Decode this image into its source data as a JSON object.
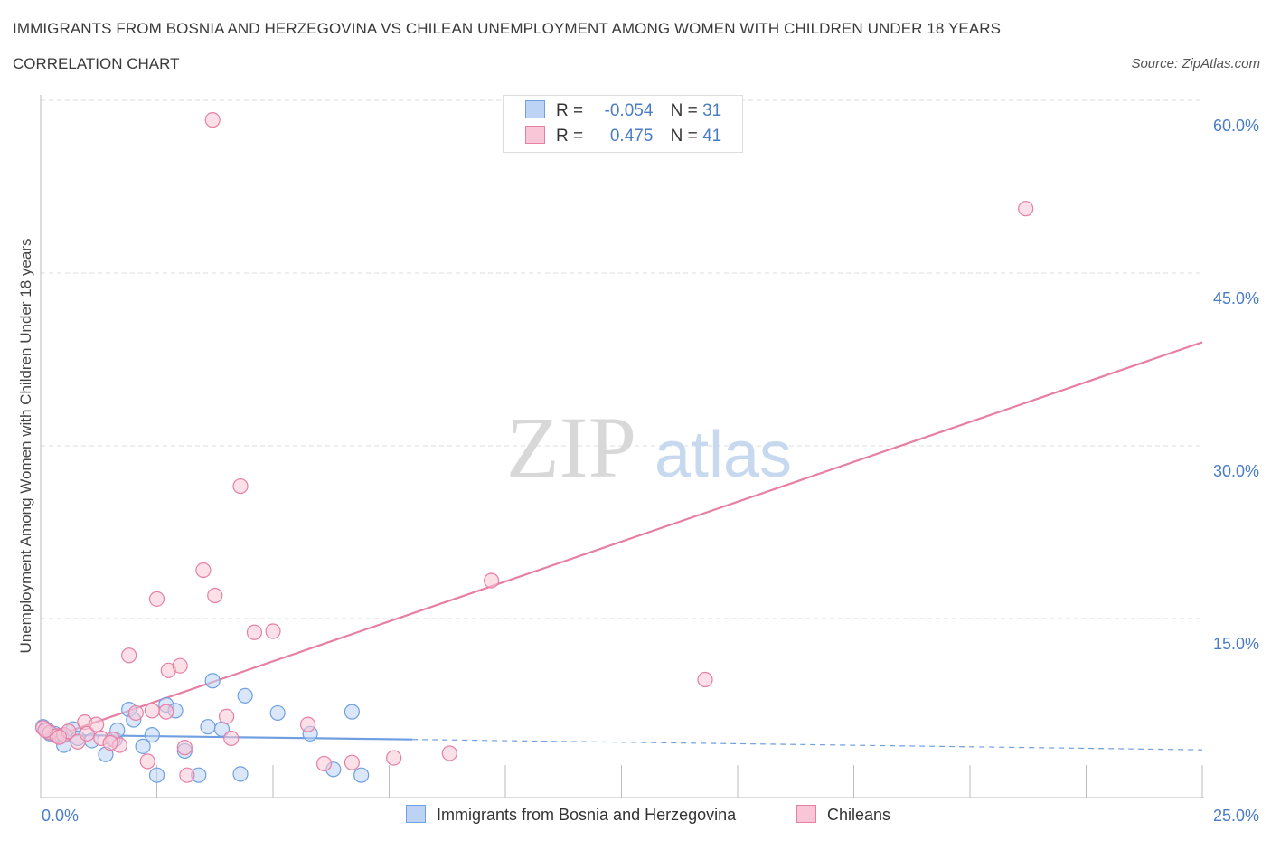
{
  "header": {
    "title": "IMMIGRANTS FROM BOSNIA AND HERZEGOVINA VS CHILEAN UNEMPLOYMENT AMONG WOMEN WITH CHILDREN UNDER 18 YEARS",
    "subtitle": "CORRELATION CHART",
    "source": "Source: ZipAtlas.com"
  },
  "watermark": {
    "zip": "ZIP",
    "atlas": "atlas"
  },
  "legend": {
    "r_label": "R =",
    "n_label": "N =",
    "series1": {
      "r": "-0.054",
      "n": "31"
    },
    "series2": {
      "r": "0.475",
      "n": "41"
    }
  },
  "chart_data": {
    "type": "scatter",
    "title": "IMMIGRANTS FROM BOSNIA AND HERZEGOVINA VS CHILEAN UNEMPLOYMENT AMONG WOMEN WITH CHILDREN UNDER 18 YEARS",
    "xlabel": "",
    "ylabel": "Unemployment Among Women with Children Under 18 years",
    "xlim": [
      0,
      25
    ],
    "ylim": [
      0,
      60
    ],
    "x_tick_labels": [
      "0.0%",
      "25.0%"
    ],
    "y_ticks": [
      15,
      30,
      45,
      60
    ],
    "y_tick_labels": [
      "15.0%",
      "30.0%",
      "45.0%",
      "60.0%"
    ],
    "grid": true,
    "legend_position": "top-center",
    "series": [
      {
        "name": "Immigrants from Bosnia and Herzegovina",
        "color": "#6f9fe0",
        "fill": "#bcd3f5",
        "trend": {
          "x0": 0.1,
          "y0": 4.9,
          "x1": 8.0,
          "y1": 4.5,
          "dash_to_x": 25,
          "dash_to_y": 3.6
        },
        "points": [
          [
            0.05,
            5.6
          ],
          [
            0.15,
            5.3
          ],
          [
            0.3,
            5.0
          ],
          [
            0.45,
            4.8
          ],
          [
            0.5,
            4.0
          ],
          [
            0.7,
            5.4
          ],
          [
            0.8,
            4.6
          ],
          [
            1.1,
            4.4
          ],
          [
            1.4,
            3.2
          ],
          [
            1.6,
            4.5
          ],
          [
            1.65,
            5.3
          ],
          [
            1.9,
            7.1
          ],
          [
            2.0,
            6.2
          ],
          [
            2.2,
            3.9
          ],
          [
            2.4,
            4.9
          ],
          [
            2.5,
            1.4
          ],
          [
            2.7,
            7.5
          ],
          [
            2.9,
            7.0
          ],
          [
            3.1,
            3.5
          ],
          [
            3.4,
            1.4
          ],
          [
            3.6,
            5.6
          ],
          [
            3.7,
            9.6
          ],
          [
            3.9,
            5.4
          ],
          [
            4.3,
            1.5
          ],
          [
            4.4,
            8.3
          ],
          [
            5.1,
            6.8
          ],
          [
            5.8,
            5.0
          ],
          [
            6.3,
            1.9
          ],
          [
            6.7,
            6.9
          ],
          [
            6.9,
            1.4
          ],
          [
            0.2,
            5.0
          ]
        ]
      },
      {
        "name": "Chileans",
        "color": "#e77fa4",
        "fill": "#f8c6d6",
        "trend": {
          "x0": 0.1,
          "y0": 4.5,
          "x1": 25,
          "y1": 39.0
        },
        "points": [
          [
            0.05,
            5.5
          ],
          [
            0.2,
            5.1
          ],
          [
            0.35,
            4.8
          ],
          [
            0.5,
            4.9
          ],
          [
            0.6,
            5.2
          ],
          [
            0.8,
            4.3
          ],
          [
            0.95,
            6.0
          ],
          [
            1.0,
            5.0
          ],
          [
            1.2,
            5.8
          ],
          [
            1.3,
            4.6
          ],
          [
            1.55,
            4.5
          ],
          [
            1.7,
            4.0
          ],
          [
            1.9,
            11.8
          ],
          [
            2.05,
            6.8
          ],
          [
            2.3,
            2.6
          ],
          [
            2.4,
            7.0
          ],
          [
            2.5,
            16.7
          ],
          [
            2.7,
            6.9
          ],
          [
            2.75,
            10.5
          ],
          [
            3.0,
            10.9
          ],
          [
            3.1,
            3.8
          ],
          [
            3.15,
            1.4
          ],
          [
            3.5,
            19.2
          ],
          [
            3.7,
            58.3
          ],
          [
            3.75,
            17.0
          ],
          [
            4.0,
            6.5
          ],
          [
            4.1,
            4.6
          ],
          [
            4.3,
            26.5
          ],
          [
            4.6,
            13.8
          ],
          [
            5.0,
            13.9
          ],
          [
            5.75,
            5.8
          ],
          [
            6.1,
            2.4
          ],
          [
            6.7,
            2.5
          ],
          [
            7.6,
            2.9
          ],
          [
            8.8,
            3.3
          ],
          [
            9.7,
            18.3
          ],
          [
            14.3,
            9.7
          ],
          [
            21.2,
            50.6
          ],
          [
            0.1,
            5.3
          ],
          [
            0.4,
            4.7
          ],
          [
            1.5,
            4.2
          ]
        ]
      }
    ]
  }
}
